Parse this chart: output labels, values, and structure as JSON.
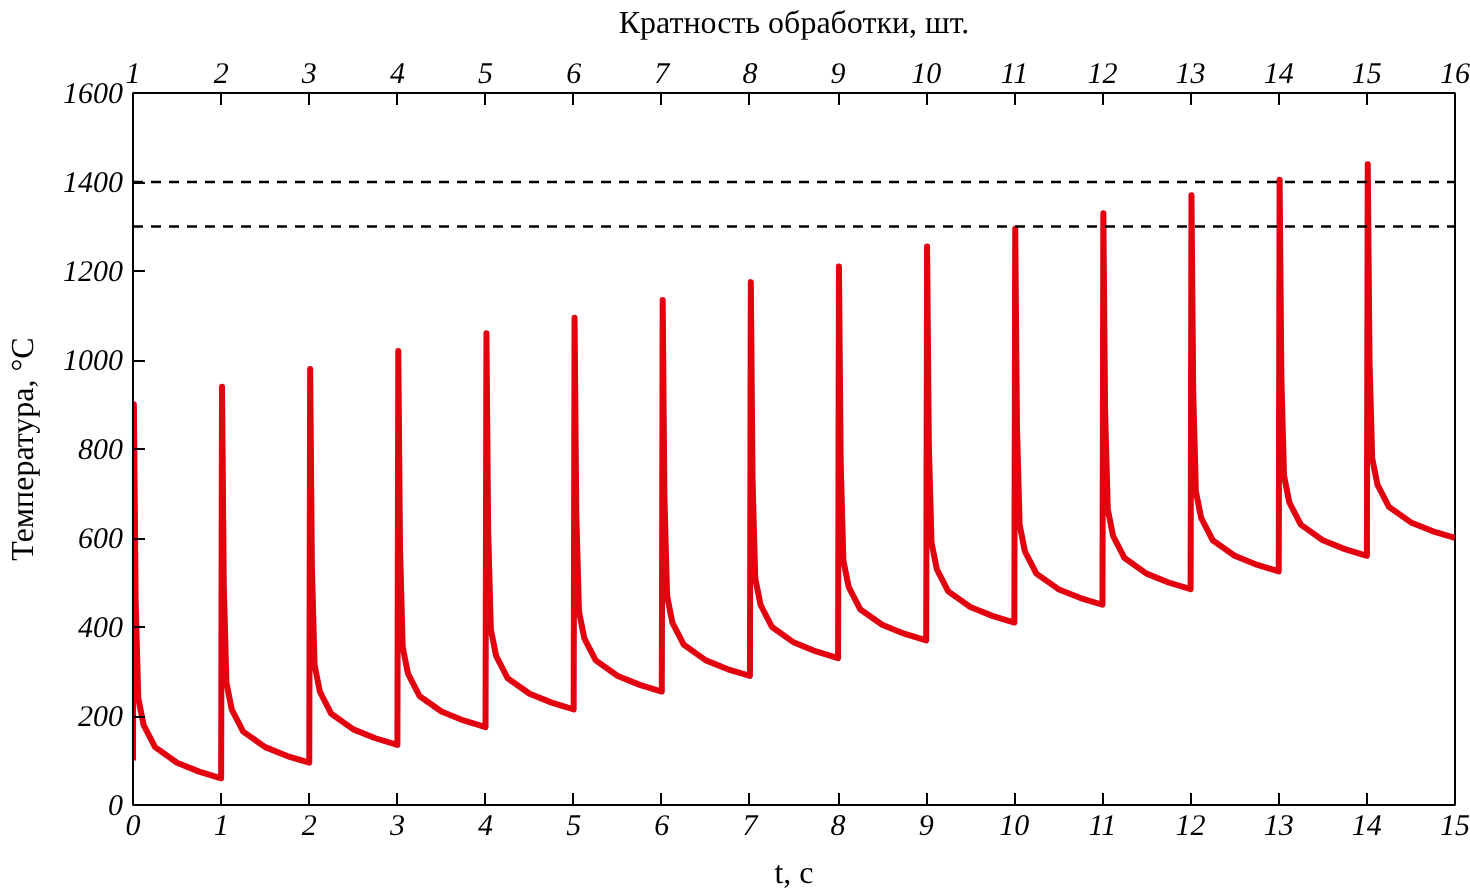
{
  "chart_data": {
    "type": "line",
    "xlabel": "t, с",
    "ylabel": "Температура, °С",
    "x2label": "Кратность обработки, шт.",
    "xlim": [
      0,
      15
    ],
    "xticks": [
      0,
      1,
      2,
      3,
      4,
      5,
      6,
      7,
      8,
      9,
      10,
      11,
      12,
      13,
      14,
      15
    ],
    "x2lim": [
      1,
      16
    ],
    "x2ticks": [
      1,
      2,
      3,
      4,
      5,
      6,
      7,
      8,
      9,
      10,
      11,
      12,
      13,
      14,
      15,
      16
    ],
    "ylim": [
      0,
      1600
    ],
    "yticks": [
      0,
      200,
      400,
      600,
      800,
      1000,
      1200,
      1400,
      1600
    ],
    "grid": false,
    "line_style": "solid",
    "marker": "none",
    "ref_lines": [
      {
        "axis": "y",
        "value": 1400,
        "color": "#000000",
        "line_style": "dashed"
      },
      {
        "axis": "y",
        "value": 1300,
        "color": "#000000",
        "line_style": "dashed"
      }
    ],
    "series": [
      {
        "color": "#e3000f",
        "x": [
          0,
          0.01,
          0.03,
          0.06,
          0.12,
          0.25,
          0.5,
          0.75,
          1,
          1.01,
          1.03,
          1.06,
          1.12,
          1.25,
          1.5,
          1.75,
          2,
          2.01,
          2.03,
          2.06,
          2.12,
          2.25,
          2.5,
          2.75,
          3,
          3.01,
          3.03,
          3.06,
          3.12,
          3.25,
          3.5,
          3.75,
          4,
          4.01,
          4.03,
          4.06,
          4.12,
          4.25,
          4.5,
          4.75,
          5,
          5.01,
          5.03,
          5.06,
          5.12,
          5.25,
          5.5,
          5.75,
          6,
          6.01,
          6.03,
          6.06,
          6.12,
          6.25,
          6.5,
          6.75,
          7,
          7.01,
          7.03,
          7.06,
          7.12,
          7.25,
          7.5,
          7.75,
          8,
          8.01,
          8.03,
          8.06,
          8.12,
          8.25,
          8.5,
          8.75,
          9,
          9.01,
          9.03,
          9.06,
          9.12,
          9.25,
          9.5,
          9.75,
          10,
          10.01,
          10.03,
          10.06,
          10.12,
          10.25,
          10.5,
          10.75,
          11,
          11.01,
          11.03,
          11.06,
          11.12,
          11.25,
          11.5,
          11.75,
          12,
          12.01,
          12.03,
          12.06,
          12.12,
          12.25,
          12.5,
          12.75,
          13,
          13.01,
          13.03,
          13.06,
          13.12,
          13.25,
          13.5,
          13.75,
          14,
          14.01,
          14.03,
          14.06,
          14.12,
          14.25,
          14.5,
          14.75,
          15
        ],
        "values": [
          100,
          900,
          460,
          240,
          180,
          130,
          95,
          75,
          60,
          940,
          495,
          275,
          215,
          165,
          130,
          110,
          95,
          980,
          535,
          315,
          255,
          205,
          170,
          150,
          135,
          1020,
          575,
          355,
          295,
          245,
          210,
          190,
          175,
          1060,
          615,
          395,
          335,
          285,
          250,
          230,
          215,
          1095,
          655,
          435,
          375,
          325,
          290,
          270,
          255,
          1135,
          690,
          470,
          410,
          360,
          325,
          305,
          290,
          1175,
          730,
          510,
          450,
          400,
          365,
          345,
          330,
          1210,
          770,
          550,
          490,
          440,
          405,
          385,
          370,
          1255,
          810,
          590,
          530,
          480,
          445,
          425,
          410,
          1295,
          850,
          630,
          570,
          520,
          485,
          465,
          450,
          1330,
          885,
          665,
          605,
          555,
          520,
          500,
          485,
          1370,
          925,
          705,
          645,
          595,
          560,
          540,
          525,
          1405,
          960,
          740,
          680,
          630,
          595,
          575,
          560,
          1440,
          1000,
          780,
          720,
          670,
          635,
          615,
          600
        ]
      }
    ]
  }
}
